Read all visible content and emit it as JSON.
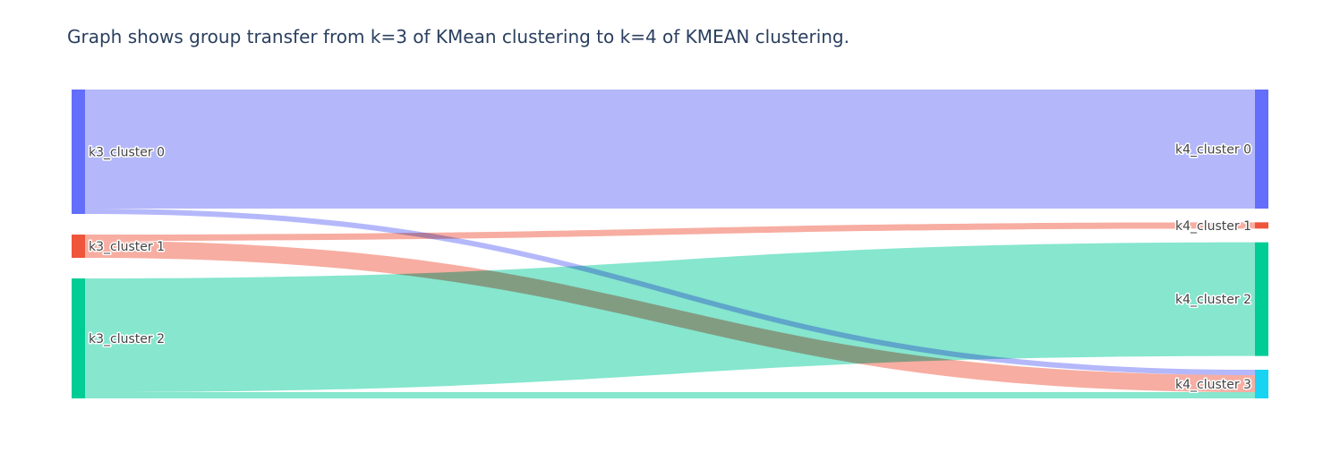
{
  "chart_data": {
    "type": "sankey",
    "title": "Graph shows group transfer from k=3 of KMean clustering to k=4 of KMEAN clustering.",
    "nodes": [
      {
        "id": "k3_0",
        "label": "k3_cluster 0",
        "column": 0,
        "color": "#636efa"
      },
      {
        "id": "k3_1",
        "label": "k3_cluster 1",
        "column": 0,
        "color": "#ef553b"
      },
      {
        "id": "k3_2",
        "label": "k3_cluster 2",
        "column": 0,
        "color": "#00cc96"
      },
      {
        "id": "k4_0",
        "label": "k4_cluster 0",
        "column": 1,
        "color": "#636efa"
      },
      {
        "id": "k4_1",
        "label": "k4_cluster 1",
        "column": 1,
        "color": "#ef553b"
      },
      {
        "id": "k4_2",
        "label": "k4_cluster 2",
        "column": 1,
        "color": "#00cc96"
      },
      {
        "id": "k4_3",
        "label": "k4_cluster 3",
        "column": 1,
        "color": "#19d3f3"
      }
    ],
    "links": [
      {
        "source": "k3_0",
        "target": "k4_0",
        "value": 133,
        "color": "#b0b4fa"
      },
      {
        "source": "k3_0",
        "target": "k4_3",
        "value": 6,
        "color": "#b0b4fa"
      },
      {
        "source": "k3_1",
        "target": "k4_1",
        "value": 7,
        "color": "#f7a99c"
      },
      {
        "source": "k3_1",
        "target": "k4_3",
        "value": 19,
        "color": "#f7a99c"
      },
      {
        "source": "k3_2",
        "target": "k4_2",
        "value": 127,
        "color": "#80e5cb"
      },
      {
        "source": "k3_2",
        "target": "k4_3",
        "value": 7,
        "color": "#80e5cb"
      }
    ]
  }
}
